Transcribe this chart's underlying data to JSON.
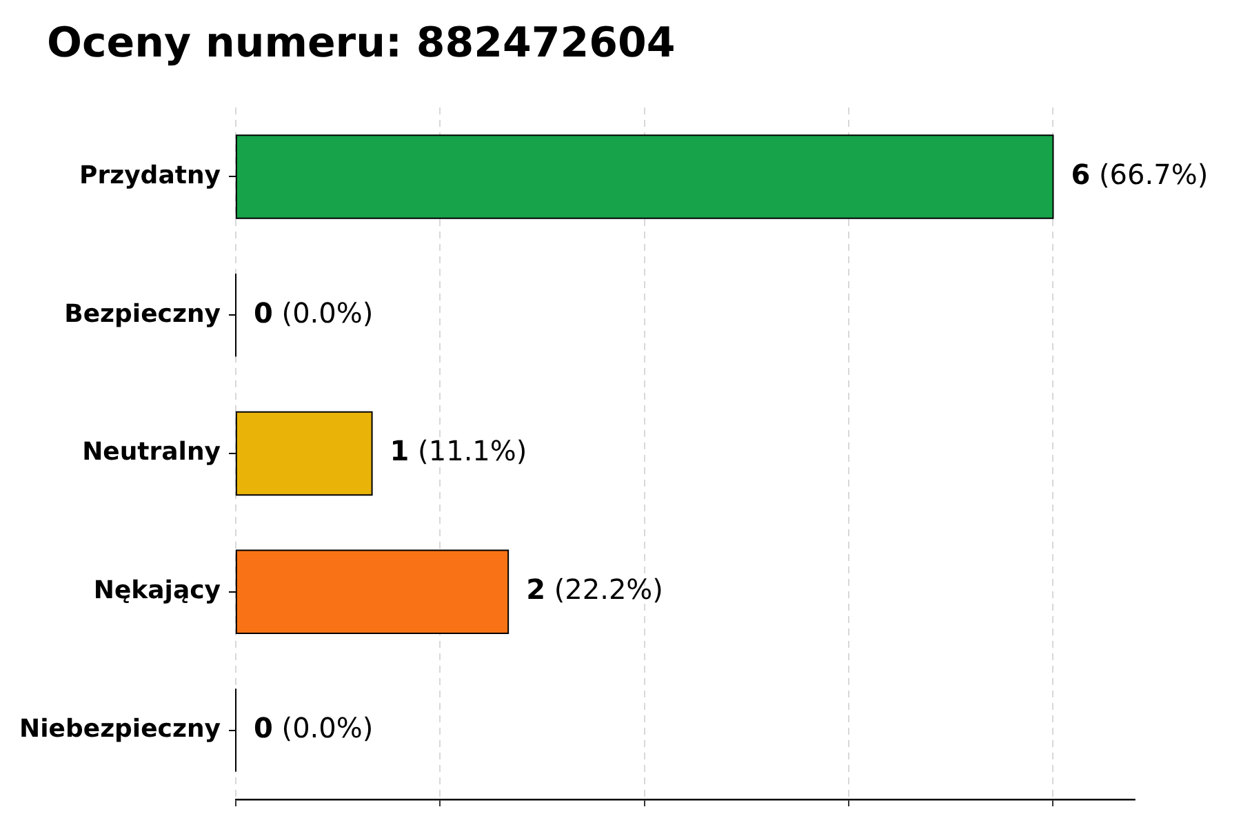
{
  "chart_data": {
    "type": "bar",
    "orientation": "horizontal",
    "title": "Oceny numeru: 882472604",
    "categories": [
      "Przydatny",
      "Bezpieczny",
      "Neutralny",
      "Nękający",
      "Niebezpieczny"
    ],
    "values": [
      6,
      0,
      1,
      2,
      0
    ],
    "colors": [
      "#16a34a",
      "#000000",
      "#eab308",
      "#f97316",
      "#000000"
    ],
    "value_labels": [
      "6 (66.7%)",
      "0 (0.0%)",
      "1 (11.1%)",
      "2 (22.2%)",
      "0 (0.0%)"
    ],
    "xlim": [
      0,
      6.6
    ],
    "xticks": [
      {
        "value": 0,
        "label": null
      },
      {
        "value": 1.5,
        "label": null
      },
      {
        "value": 3,
        "label": null
      },
      {
        "value": 4.5,
        "label": null
      },
      {
        "value": 6,
        "label": null
      }
    ],
    "grid": "x",
    "tick_labels": "y"
  }
}
